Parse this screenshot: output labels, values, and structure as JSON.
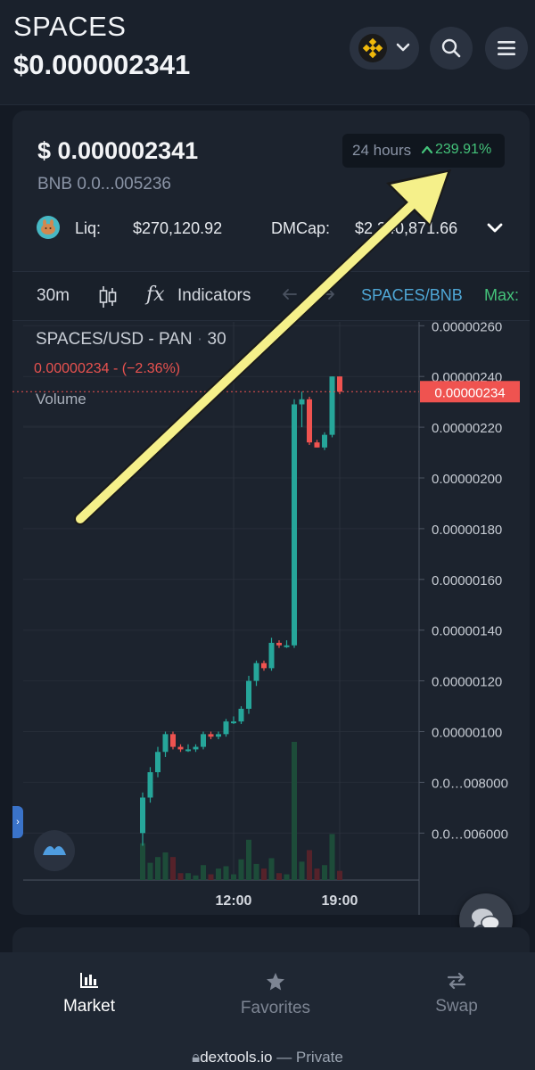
{
  "header": {
    "token_name": "SPACES",
    "token_price": "$0.000002341",
    "chain_icon": "bnb-chain-icon",
    "search_icon": "search-icon",
    "menu_icon": "hamburger-menu-icon"
  },
  "price_card": {
    "price": "$ 0.000002341",
    "pair_price_line": "BNB  0.0...005236",
    "change_period": "24 hours",
    "change_value": "239.91%",
    "change_color": "#44c37a",
    "liq_label": "Liq:",
    "liq_value": "$270,120.92",
    "dmcap_label": "DMCap:",
    "dmcap_value": "$2,340,871.66"
  },
  "toolbar": {
    "interval": "30m",
    "indicators_label": "Indicators",
    "fx_label": "fx",
    "pair": "SPACES/BNB",
    "max_label": "Max:"
  },
  "chart_header": {
    "title": "SPACES/USD - PAN",
    "dot": "·",
    "interval": "30",
    "ohlc_line": "0.00000234  - (−2.36%)",
    "volume_label": "Volume"
  },
  "chart_data": {
    "type": "candlestick",
    "title": "SPACES/USD - PAN · 30",
    "y_ticks": [
      "0.00000260",
      "0.00000240",
      "0.00000220",
      "0.00000200",
      "0.00000180",
      "0.00000160",
      "0.00000140",
      "0.00000120",
      "0.00000100",
      "0.0…008000",
      "0.0…006000"
    ],
    "y_tick_values": [
      2.6,
      2.4,
      2.2,
      2.0,
      1.8,
      1.6,
      1.4,
      1.2,
      1.0,
      0.8,
      0.6
    ],
    "y_unit": "×1e-6 USD",
    "ylim": [
      0.4,
      2.7
    ],
    "x_ticks": [
      "12:00",
      "19:00"
    ],
    "last_price_label": "0.00000234",
    "last_price_value": 2.34,
    "candles": [
      {
        "o": 0.6,
        "h": 0.76,
        "l": 0.55,
        "c": 0.74,
        "v": 3.2
      },
      {
        "o": 0.74,
        "h": 0.86,
        "l": 0.72,
        "c": 0.84,
        "v": 1.5
      },
      {
        "o": 0.84,
        "h": 0.94,
        "l": 0.82,
        "c": 0.92,
        "v": 2.0
      },
      {
        "o": 0.92,
        "h": 1.0,
        "l": 0.9,
        "c": 0.99,
        "v": 2.4
      },
      {
        "o": 0.99,
        "h": 1.0,
        "l": 0.93,
        "c": 0.94,
        "v": 2.0
      },
      {
        "o": 0.94,
        "h": 0.95,
        "l": 0.92,
        "c": 0.93,
        "v": 0.6
      },
      {
        "o": 0.93,
        "h": 0.95,
        "l": 0.92,
        "c": 0.93,
        "v": 0.6
      },
      {
        "o": 0.93,
        "h": 0.95,
        "l": 0.92,
        "c": 0.94,
        "v": 0.4
      },
      {
        "o": 0.94,
        "h": 1.0,
        "l": 0.93,
        "c": 0.99,
        "v": 1.3
      },
      {
        "o": 0.99,
        "h": 1.0,
        "l": 0.97,
        "c": 0.98,
        "v": 0.5
      },
      {
        "o": 0.98,
        "h": 1.0,
        "l": 0.97,
        "c": 0.99,
        "v": 1.0
      },
      {
        "o": 0.99,
        "h": 1.05,
        "l": 0.98,
        "c": 1.04,
        "v": 1.2
      },
      {
        "o": 1.04,
        "h": 1.06,
        "l": 1.03,
        "c": 1.04,
        "v": 0.5
      },
      {
        "o": 1.04,
        "h": 1.1,
        "l": 1.03,
        "c": 1.09,
        "v": 1.8
      },
      {
        "o": 1.09,
        "h": 1.22,
        "l": 1.07,
        "c": 1.2,
        "v": 3.5
      },
      {
        "o": 1.2,
        "h": 1.28,
        "l": 1.18,
        "c": 1.27,
        "v": 1.4
      },
      {
        "o": 1.27,
        "h": 1.28,
        "l": 1.24,
        "c": 1.25,
        "v": 1.0
      },
      {
        "o": 1.25,
        "h": 1.37,
        "l": 1.24,
        "c": 1.35,
        "v": 1.9
      },
      {
        "o": 1.35,
        "h": 1.36,
        "l": 1.33,
        "c": 1.34,
        "v": 0.6
      },
      {
        "o": 1.34,
        "h": 1.36,
        "l": 1.33,
        "c": 1.34,
        "v": 0.5
      },
      {
        "o": 1.34,
        "h": 2.31,
        "l": 1.33,
        "c": 2.29,
        "v": 12.0
      },
      {
        "o": 2.29,
        "h": 2.34,
        "l": 2.2,
        "c": 2.31,
        "v": 1.6
      },
      {
        "o": 2.31,
        "h": 2.32,
        "l": 2.13,
        "c": 2.14,
        "v": 2.6
      },
      {
        "o": 2.14,
        "h": 2.15,
        "l": 2.12,
        "c": 2.12,
        "v": 1.0
      },
      {
        "o": 2.12,
        "h": 2.18,
        "l": 2.11,
        "c": 2.17,
        "v": 1.3
      },
      {
        "o": 2.17,
        "h": 2.4,
        "l": 2.16,
        "c": 2.4,
        "v": 4.0
      },
      {
        "o": 2.4,
        "h": 2.4,
        "l": 2.33,
        "c": 2.34,
        "v": 0.8
      }
    ],
    "colors": {
      "up": "#26a69a",
      "down": "#ef5350",
      "up_volume": "#1d4c39",
      "down_volume": "#55222a"
    }
  },
  "bottom_nav": {
    "items": [
      {
        "label": "Market",
        "icon": "bar-chart-icon",
        "active": true
      },
      {
        "label": "Favorites",
        "icon": "star-icon",
        "active": false
      },
      {
        "label": "Swap",
        "icon": "swap-arrows-icon",
        "active": false
      }
    ]
  },
  "browser": {
    "host": "dextools.io",
    "suffix": " — Private"
  }
}
